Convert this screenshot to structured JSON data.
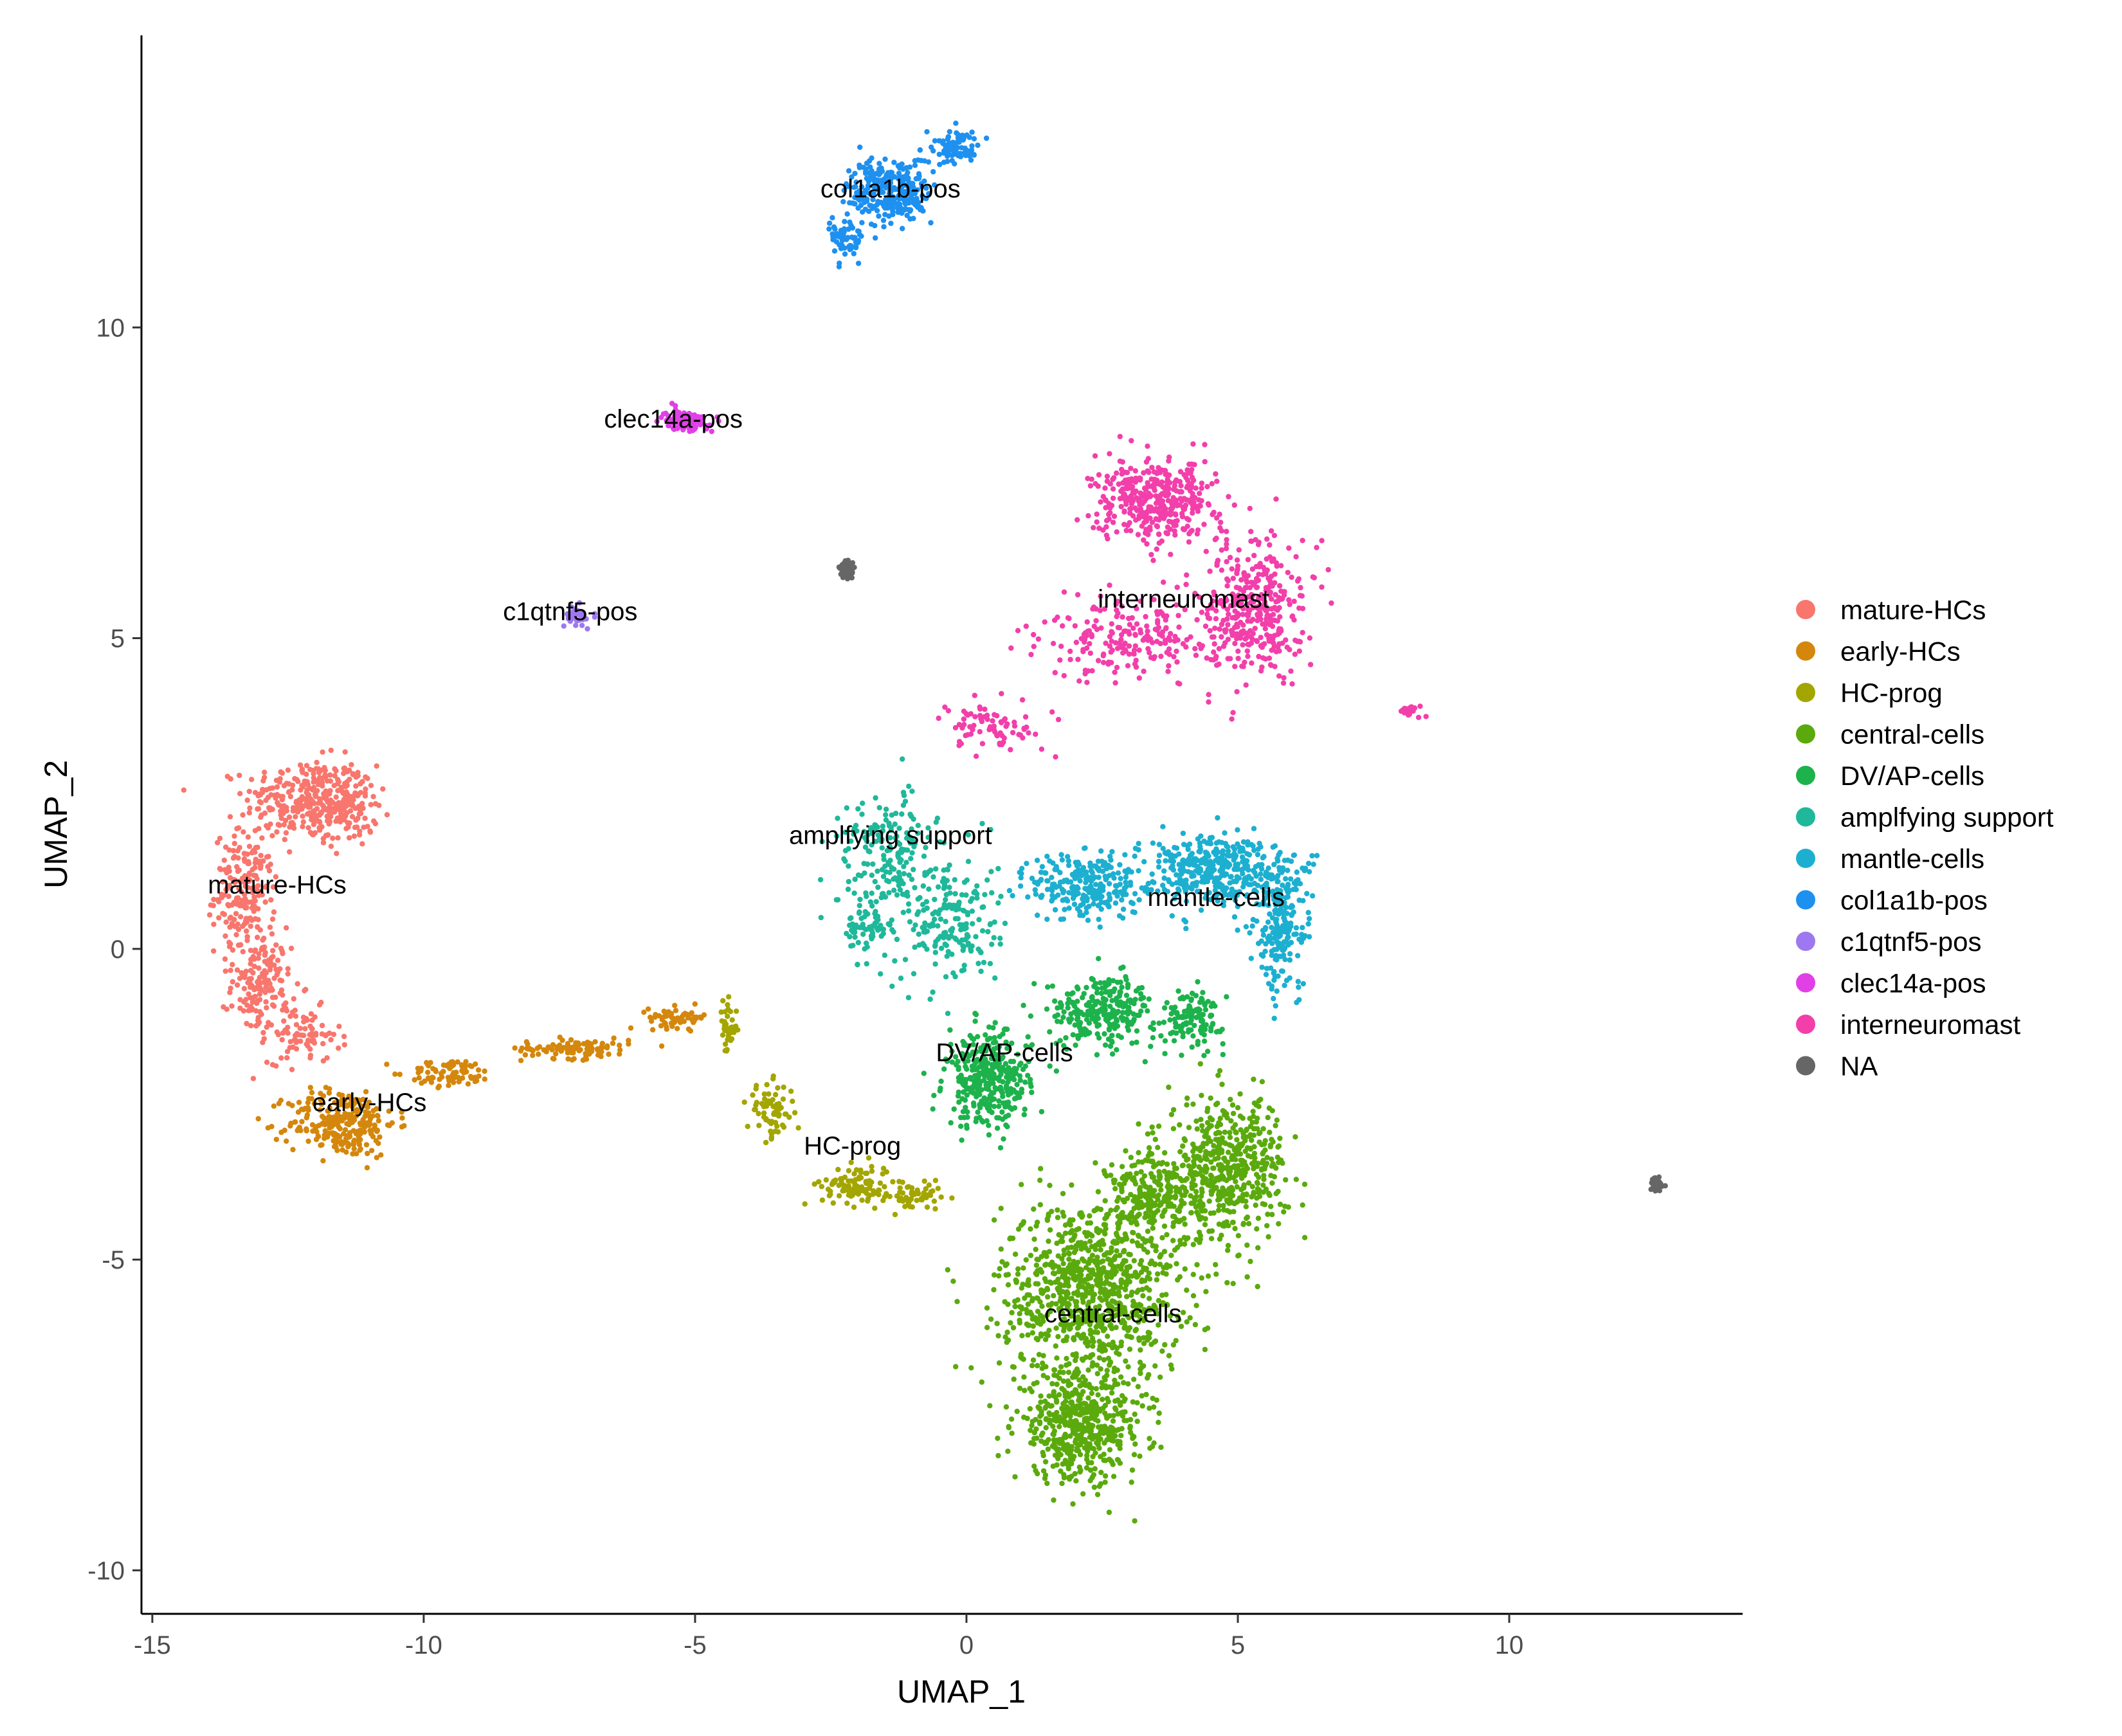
{
  "chart_data": {
    "type": "scatter",
    "title": "",
    "xlabel": "UMAP_1",
    "ylabel": "UMAP_2",
    "xlim": [
      -15.2,
      14.3
    ],
    "ylim": [
      -10.7,
      14.7
    ],
    "xticks": [
      -15,
      -10,
      -5,
      0,
      5,
      10
    ],
    "xtick_labels": [
      "-15",
      "-10",
      "-5",
      "0",
      "5",
      "10"
    ],
    "yticks": [
      -10,
      -5,
      0,
      5,
      10
    ],
    "ytick_labels": [
      "-10",
      "-5",
      "0",
      "5",
      "10"
    ],
    "grid": false,
    "legend_position": "right",
    "series": [
      {
        "name": "mature-HCs",
        "color": "#F8766D",
        "label": {
          "text": "mature-HCs",
          "x": -12.7,
          "y": 1.0
        },
        "blobs": [
          {
            "cx": -12.2,
            "cy": 2.4,
            "sx": 1.0,
            "sy": 0.6,
            "n": 260
          },
          {
            "cx": -11.4,
            "cy": 2.3,
            "sx": 0.5,
            "sy": 0.6,
            "n": 120
          },
          {
            "cx": -13.3,
            "cy": 0.9,
            "sx": 0.5,
            "sy": 0.9,
            "n": 200
          },
          {
            "cx": -13.0,
            "cy": -0.6,
            "sx": 0.5,
            "sy": 0.7,
            "n": 150
          },
          {
            "cx": -12.2,
            "cy": -1.4,
            "sx": 0.6,
            "sy": 0.4,
            "n": 80
          }
        ]
      },
      {
        "name": "early-HCs",
        "color": "#D4870C",
        "label": {
          "text": "early-HCs",
          "x": -11.0,
          "y": -2.5
        },
        "blobs": [
          {
            "cx": -11.5,
            "cy": -2.8,
            "sx": 0.9,
            "sy": 0.5,
            "n": 260
          },
          {
            "cx": -9.5,
            "cy": -2.0,
            "sx": 0.7,
            "sy": 0.2,
            "n": 80
          },
          {
            "cx": -7.2,
            "cy": -1.6,
            "sx": 0.9,
            "sy": 0.15,
            "n": 100
          },
          {
            "cx": -5.3,
            "cy": -1.1,
            "sx": 0.5,
            "sy": 0.15,
            "n": 60
          }
        ]
      },
      {
        "name": "HC-prog",
        "color": "#A3A500",
        "label": {
          "text": "HC-prog",
          "x": -2.1,
          "y": -3.2
        },
        "blobs": [
          {
            "cx": -4.4,
            "cy": -1.3,
            "sx": 0.15,
            "sy": 0.4,
            "n": 40
          },
          {
            "cx": -3.6,
            "cy": -2.6,
            "sx": 0.4,
            "sy": 0.4,
            "n": 70
          },
          {
            "cx": -2.0,
            "cy": -3.8,
            "sx": 0.6,
            "sy": 0.3,
            "n": 110
          },
          {
            "cx": -0.9,
            "cy": -4.0,
            "sx": 0.4,
            "sy": 0.2,
            "n": 60
          }
        ]
      },
      {
        "name": "central-cells",
        "color": "#5BAA0D",
        "label": {
          "text": "central-cells",
          "x": 2.7,
          "y": -5.9
        },
        "blobs": [
          {
            "cx": 2.3,
            "cy": -5.5,
            "sx": 1.5,
            "sy": 1.3,
            "n": 900
          },
          {
            "cx": 2.1,
            "cy": -7.7,
            "sx": 1.1,
            "sy": 0.8,
            "n": 500
          },
          {
            "cx": 4.8,
            "cy": -3.5,
            "sx": 1.0,
            "sy": 1.0,
            "n": 500
          },
          {
            "cx": 3.5,
            "cy": -4.0,
            "sx": 0.8,
            "sy": 0.7,
            "n": 250
          }
        ]
      },
      {
        "name": "DV/AP-cells",
        "color": "#1DB24C",
        "label": {
          "text": "DV/AP-cells",
          "x": 0.7,
          "y": -1.7
        },
        "blobs": [
          {
            "cx": 0.4,
            "cy": -2.1,
            "sx": 0.7,
            "sy": 0.7,
            "n": 350
          },
          {
            "cx": 2.5,
            "cy": -1.0,
            "sx": 0.9,
            "sy": 0.5,
            "n": 260
          },
          {
            "cx": 4.2,
            "cy": -1.1,
            "sx": 0.5,
            "sy": 0.4,
            "n": 120
          }
        ]
      },
      {
        "name": "amplfying support",
        "color": "#1FB89A",
        "label": {
          "text": "amplfying support",
          "x": -1.4,
          "y": 1.8
        },
        "blobs": [
          {
            "cx": -1.5,
            "cy": 1.6,
            "sx": 0.8,
            "sy": 0.8,
            "n": 160
          },
          {
            "cx": -0.3,
            "cy": 0.5,
            "sx": 0.8,
            "sy": 1.0,
            "n": 200
          },
          {
            "cx": -1.8,
            "cy": 0.4,
            "sx": 0.5,
            "sy": 0.6,
            "n": 80
          }
        ]
      },
      {
        "name": "mantle-cells",
        "color": "#1DAFD0",
        "label": {
          "text": "mantle-cells",
          "x": 4.6,
          "y": 0.8
        },
        "blobs": [
          {
            "cx": 2.2,
            "cy": 1.0,
            "sx": 0.9,
            "sy": 0.5,
            "n": 260
          },
          {
            "cx": 4.5,
            "cy": 1.3,
            "sx": 1.2,
            "sy": 0.5,
            "n": 380
          },
          {
            "cx": 5.8,
            "cy": 0.4,
            "sx": 0.5,
            "sy": 1.0,
            "n": 220
          }
        ]
      },
      {
        "name": "col1a1b-pos",
        "color": "#1E90F0",
        "label": {
          "text": "col1a1b-pos",
          "x": -1.4,
          "y": 12.2
        },
        "blobs": [
          {
            "cx": -1.4,
            "cy": 12.2,
            "sx": 0.7,
            "sy": 0.5,
            "n": 280
          },
          {
            "cx": -0.2,
            "cy": 12.9,
            "sx": 0.4,
            "sy": 0.25,
            "n": 80
          },
          {
            "cx": -2.2,
            "cy": 11.4,
            "sx": 0.3,
            "sy": 0.3,
            "n": 60
          }
        ]
      },
      {
        "name": "c1qtnf5-pos",
        "color": "#9E78F0",
        "label": {
          "text": "c1qtnf5-pos",
          "x": -7.3,
          "y": 5.4
        },
        "blobs": [
          {
            "cx": -7.2,
            "cy": 5.35,
            "sx": 0.2,
            "sy": 0.15,
            "n": 40
          }
        ]
      },
      {
        "name": "clec14a-pos",
        "color": "#E040E6",
        "label": {
          "text": "clec14a-pos",
          "x": -5.4,
          "y": 8.5
        },
        "blobs": [
          {
            "cx": -5.2,
            "cy": 8.5,
            "sx": 0.35,
            "sy": 0.15,
            "n": 120
          }
        ]
      },
      {
        "name": "interneuromast",
        "color": "#F23FAA",
        "label": {
          "text": "interneuromast",
          "x": 4.0,
          "y": 5.6
        },
        "blobs": [
          {
            "cx": 3.5,
            "cy": 7.2,
            "sx": 1.0,
            "sy": 0.6,
            "n": 380
          },
          {
            "cx": 5.3,
            "cy": 5.5,
            "sx": 0.8,
            "sy": 1.0,
            "n": 380
          },
          {
            "cx": 3.0,
            "cy": 5.0,
            "sx": 1.4,
            "sy": 0.6,
            "n": 200
          },
          {
            "cx": 0.5,
            "cy": 3.6,
            "sx": 1.0,
            "sy": 0.4,
            "n": 80
          },
          {
            "cx": 8.2,
            "cy": 3.85,
            "sx": 0.2,
            "sy": 0.08,
            "n": 20
          }
        ]
      },
      {
        "name": "NA",
        "color": "#666666",
        "label": null,
        "blobs": [
          {
            "cx": -2.2,
            "cy": 6.1,
            "sx": 0.12,
            "sy": 0.15,
            "n": 50
          },
          {
            "cx": 12.7,
            "cy": -3.8,
            "sx": 0.12,
            "sy": 0.1,
            "n": 50
          }
        ]
      }
    ]
  }
}
